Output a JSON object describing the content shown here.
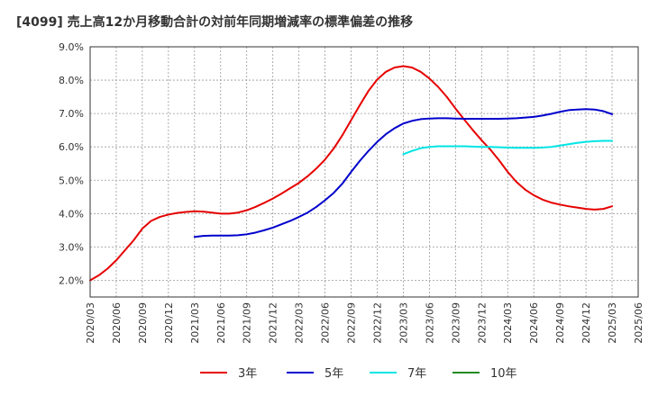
{
  "chart_data": {
    "type": "line",
    "title": "[4099]  売上高12か月移動合計の対前年同期増減率の標準偏差の推移",
    "xlabel": "",
    "ylabel": "",
    "ylim": [
      1.5,
      9.0
    ],
    "y_ticks": [
      "2.0%",
      "3.0%",
      "4.0%",
      "5.0%",
      "6.0%",
      "7.0%",
      "8.0%",
      "9.0%"
    ],
    "y_tick_values": [
      2.0,
      3.0,
      4.0,
      5.0,
      6.0,
      7.0,
      8.0,
      9.0
    ],
    "x_ticks": [
      "2020/03",
      "2020/06",
      "2020/09",
      "2020/12",
      "2021/03",
      "2021/06",
      "2021/09",
      "2021/12",
      "2022/03",
      "2022/06",
      "2022/09",
      "2022/12",
      "2023/03",
      "2023/06",
      "2023/09",
      "2023/12",
      "2024/03",
      "2024/06",
      "2024/09",
      "2024/12",
      "2025/03",
      "2025/06"
    ],
    "grid": true,
    "legend_position": "bottom",
    "series": [
      {
        "name": "3年",
        "color": "#e60000",
        "x": [
          "2020/03",
          "2020/04",
          "2020/05",
          "2020/06",
          "2020/07",
          "2020/08",
          "2020/09",
          "2020/10",
          "2020/11",
          "2020/12",
          "2021/01",
          "2021/02",
          "2021/03",
          "2021/04",
          "2021/05",
          "2021/06",
          "2021/07",
          "2021/08",
          "2021/09",
          "2021/10",
          "2021/11",
          "2021/12",
          "2022/01",
          "2022/02",
          "2022/03",
          "2022/04",
          "2022/05",
          "2022/06",
          "2022/07",
          "2022/08",
          "2022/09",
          "2022/10",
          "2022/11",
          "2022/12",
          "2023/01",
          "2023/02",
          "2023/03",
          "2023/04",
          "2023/05",
          "2023/06",
          "2023/07",
          "2023/08",
          "2023/09",
          "2023/10",
          "2023/11",
          "2023/12",
          "2024/01",
          "2024/02",
          "2024/03",
          "2024/04",
          "2024/05",
          "2024/06",
          "2024/07",
          "2024/08",
          "2024/09",
          "2024/10",
          "2024/11",
          "2024/12",
          "2025/01",
          "2025/02",
          "2025/03"
        ],
        "values": [
          2.0,
          2.15,
          2.35,
          2.6,
          2.9,
          3.2,
          3.55,
          3.78,
          3.9,
          3.97,
          4.02,
          4.05,
          4.07,
          4.06,
          4.03,
          4.0,
          4.0,
          4.03,
          4.1,
          4.2,
          4.32,
          4.45,
          4.6,
          4.76,
          4.92,
          5.12,
          5.35,
          5.62,
          5.95,
          6.35,
          6.8,
          7.25,
          7.68,
          8.02,
          8.25,
          8.38,
          8.42,
          8.38,
          8.25,
          8.05,
          7.8,
          7.5,
          7.15,
          6.82,
          6.5,
          6.2,
          5.92,
          5.6,
          5.25,
          4.95,
          4.72,
          4.55,
          4.42,
          4.33,
          4.27,
          4.22,
          4.18,
          4.14,
          4.12,
          4.14,
          4.22
        ]
      },
      {
        "name": "5年",
        "color": "#0000cc",
        "x": [
          "2021/03",
          "2021/04",
          "2021/05",
          "2021/06",
          "2021/07",
          "2021/08",
          "2021/09",
          "2021/10",
          "2021/11",
          "2021/12",
          "2022/01",
          "2022/02",
          "2022/03",
          "2022/04",
          "2022/05",
          "2022/06",
          "2022/07",
          "2022/08",
          "2022/09",
          "2022/10",
          "2022/11",
          "2022/12",
          "2023/01",
          "2023/02",
          "2023/03",
          "2023/04",
          "2023/05",
          "2023/06",
          "2023/07",
          "2023/08",
          "2023/09",
          "2023/10",
          "2023/11",
          "2023/12",
          "2024/01",
          "2024/02",
          "2024/03",
          "2024/04",
          "2024/05",
          "2024/06",
          "2024/07",
          "2024/08",
          "2024/09",
          "2024/10",
          "2024/11",
          "2024/12",
          "2025/01",
          "2025/02",
          "2025/03"
        ],
        "values": [
          3.3,
          3.33,
          3.34,
          3.34,
          3.34,
          3.35,
          3.38,
          3.43,
          3.5,
          3.58,
          3.68,
          3.78,
          3.9,
          4.03,
          4.2,
          4.4,
          4.62,
          4.9,
          5.25,
          5.58,
          5.88,
          6.15,
          6.38,
          6.56,
          6.7,
          6.78,
          6.83,
          6.85,
          6.86,
          6.86,
          6.85,
          6.84,
          6.84,
          6.84,
          6.84,
          6.84,
          6.85,
          6.86,
          6.88,
          6.9,
          6.94,
          6.99,
          7.05,
          7.1,
          7.12,
          7.13,
          7.12,
          7.07,
          6.98
        ]
      },
      {
        "name": "7年",
        "color": "#00e5e5",
        "x": [
          "2023/03",
          "2023/04",
          "2023/05",
          "2023/06",
          "2023/07",
          "2023/08",
          "2023/09",
          "2023/10",
          "2023/11",
          "2023/12",
          "2024/01",
          "2024/02",
          "2024/03",
          "2024/04",
          "2024/05",
          "2024/06",
          "2024/07",
          "2024/08",
          "2024/09",
          "2024/10",
          "2024/11",
          "2024/12",
          "2025/01",
          "2025/02",
          "2025/03"
        ],
        "values": [
          5.78,
          5.88,
          5.96,
          6.0,
          6.02,
          6.02,
          6.02,
          6.02,
          6.01,
          6.0,
          6.0,
          5.99,
          5.98,
          5.97,
          5.97,
          5.97,
          5.98,
          6.0,
          6.04,
          6.08,
          6.12,
          6.15,
          6.17,
          6.18,
          6.18
        ]
      },
      {
        "name": "10年",
        "color": "#228b22",
        "x": [],
        "values": []
      }
    ]
  }
}
